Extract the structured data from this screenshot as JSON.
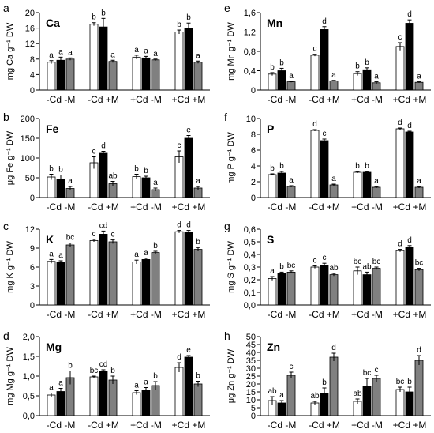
{
  "chart_data": [
    {
      "type": "bar",
      "panel_letter": "a",
      "element": "Ca",
      "ylabel": "mg Ca g⁻¹ DW",
      "ylim": [
        0,
        20
      ],
      "yticks": [
        0,
        4,
        8,
        12,
        16,
        20
      ],
      "ytick_labels": [
        "0",
        "4",
        "8",
        "12",
        "16",
        "20"
      ],
      "categories": [
        "-Cd -M",
        "-Cd +M",
        "+Cd -M",
        "+Cd +M"
      ],
      "series": [
        {
          "values": [
            7.2,
            17.0,
            8.5,
            15.0
          ],
          "errors": [
            0.4,
            0.4,
            0.5,
            0.5
          ],
          "letters": [
            "a",
            "b",
            "a",
            "b"
          ]
        },
        {
          "values": [
            7.7,
            16.3,
            8.3,
            16.0
          ],
          "errors": [
            0.8,
            2.2,
            0.4,
            1.3
          ],
          "letters": [
            "a",
            "b",
            "a",
            "b"
          ]
        },
        {
          "values": [
            8.0,
            7.4,
            7.8,
            7.2
          ],
          "errors": [
            0.3,
            0.3,
            0.2,
            0.3
          ],
          "letters": [
            "a",
            "a",
            "a",
            "a"
          ]
        }
      ]
    },
    {
      "type": "bar",
      "panel_letter": "b",
      "element": "Fe",
      "ylabel": "μg Fe g⁻¹ DW",
      "ylim": [
        0,
        200
      ],
      "yticks": [
        0,
        50,
        100,
        150,
        200
      ],
      "ytick_labels": [
        "0",
        "50",
        "100",
        "150",
        "200"
      ],
      "categories": [
        "-Cd -M",
        "-Cd +M",
        "+Cd -M",
        "+Cd +M"
      ],
      "series": [
        {
          "values": [
            52,
            88,
            53,
            103
          ],
          "errors": [
            7,
            15,
            6,
            15
          ],
          "letters": [
            "b",
            "c",
            "b",
            "c"
          ]
        },
        {
          "values": [
            47,
            112,
            50,
            150
          ],
          "errors": [
            10,
            5,
            4,
            7
          ],
          "letters": [
            "b",
            "d",
            "b",
            "e"
          ]
        },
        {
          "values": [
            23,
            35,
            20,
            24
          ],
          "errors": [
            5,
            6,
            4,
            4
          ],
          "letters": [
            "a",
            "ab",
            "a",
            "a"
          ]
        }
      ]
    },
    {
      "type": "bar",
      "panel_letter": "c",
      "element": "K",
      "ylabel": "mg K g⁻¹ DW",
      "ylim": [
        0,
        12
      ],
      "yticks": [
        0,
        3,
        6,
        9,
        12
      ],
      "ytick_labels": [
        "0",
        "3",
        "6",
        "9",
        "12"
      ],
      "categories": [
        "-Cd -M",
        "-Cd +M",
        "+Cd -M",
        "+Cd +M"
      ],
      "series": [
        {
          "values": [
            6.9,
            10.2,
            6.8,
            11.6
          ],
          "errors": [
            0.3,
            0.2,
            0.3,
            0.2
          ],
          "letters": [
            "a",
            "c",
            "a",
            "d"
          ]
        },
        {
          "values": [
            6.7,
            11.2,
            7.2,
            11.5
          ],
          "errors": [
            0.3,
            0.5,
            0.2,
            0.3
          ],
          "letters": [
            "a",
            "cd",
            "a",
            "d"
          ]
        },
        {
          "values": [
            9.5,
            10.0,
            8.3,
            8.8
          ],
          "errors": [
            0.3,
            0.3,
            0.2,
            0.3
          ],
          "letters": [
            "bc",
            "c",
            "b",
            "b"
          ]
        }
      ]
    },
    {
      "type": "bar",
      "panel_letter": "d",
      "element": "Mg",
      "ylabel": "mg Mg g⁻¹ DW",
      "ylim": [
        0,
        2
      ],
      "yticks": [
        0,
        0.5,
        1,
        1.5,
        2
      ],
      "ytick_labels": [
        "0,0",
        "0,5",
        "1,0",
        "1,5",
        "2,0"
      ],
      "categories": [
        "-Cd -M",
        "-Cd +M",
        "+Cd -M",
        "+Cd +M"
      ],
      "series": [
        {
          "values": [
            0.52,
            0.98,
            0.58,
            1.22
          ],
          "errors": [
            0.05,
            0.02,
            0.05,
            0.12
          ],
          "letters": [
            "a",
            "bc",
            "a",
            "d"
          ]
        },
        {
          "values": [
            0.61,
            1.12,
            0.65,
            1.48
          ],
          "errors": [
            0.08,
            0.04,
            0.06,
            0.04
          ],
          "letters": [
            "a",
            "cd",
            "a",
            "e"
          ]
        },
        {
          "values": [
            0.96,
            0.9,
            0.76,
            0.8
          ],
          "errors": [
            0.17,
            0.1,
            0.1,
            0.07
          ],
          "letters": [
            "b",
            "b",
            "b",
            "b"
          ]
        }
      ]
    },
    {
      "type": "bar",
      "panel_letter": "e",
      "element": "Mn",
      "ylabel": "mg Mn g⁻¹ DW",
      "ylim": [
        0,
        1.6
      ],
      "yticks": [
        0,
        0.4,
        0.8,
        1.2,
        1.6
      ],
      "ytick_labels": [
        "0",
        "0,4",
        "0,8",
        "1,2",
        "1,6"
      ],
      "categories": [
        "-Cd -M",
        "-Cd +M",
        "+Cd -M",
        "+Cd +M"
      ],
      "series": [
        {
          "values": [
            0.33,
            0.72,
            0.34,
            0.9
          ],
          "errors": [
            0.03,
            0.02,
            0.04,
            0.08
          ],
          "letters": [
            "b",
            "c",
            "b",
            "c"
          ]
        },
        {
          "values": [
            0.4,
            1.25,
            0.42,
            1.38
          ],
          "errors": [
            0.05,
            0.06,
            0.04,
            0.07
          ],
          "letters": [
            "b",
            "d",
            "b",
            "d"
          ]
        },
        {
          "values": [
            0.17,
            0.19,
            0.15,
            0.16
          ],
          "errors": [
            0.01,
            0.01,
            0.02,
            0.01
          ],
          "letters": [
            "a",
            "a",
            "a",
            "a"
          ]
        }
      ]
    },
    {
      "type": "bar",
      "panel_letter": "f",
      "element": "P",
      "ylabel": "mg P g⁻¹ DW",
      "ylim": [
        0,
        10
      ],
      "yticks": [
        0,
        2,
        4,
        6,
        8,
        10
      ],
      "ytick_labels": [
        "0",
        "2",
        "4",
        "6",
        "8",
        "10"
      ],
      "categories": [
        "-Cd -M",
        "-Cd +M",
        "+Cd -M",
        "+Cd +M"
      ],
      "series": [
        {
          "values": [
            2.9,
            8.5,
            3.2,
            8.7
          ],
          "errors": [
            0.1,
            0.1,
            0.1,
            0.1
          ],
          "letters": [
            "b",
            "d",
            "b",
            "d"
          ]
        },
        {
          "values": [
            3.1,
            7.2,
            3.2,
            8.3
          ],
          "errors": [
            0.2,
            0.2,
            0.1,
            0.1
          ],
          "letters": [
            "b",
            "c",
            "b",
            "d"
          ]
        },
        {
          "values": [
            1.4,
            1.6,
            1.3,
            1.3
          ],
          "errors": [
            0.1,
            0.1,
            0.1,
            0.1
          ],
          "letters": [
            "a",
            "a",
            "a",
            "a"
          ]
        }
      ]
    },
    {
      "type": "bar",
      "panel_letter": "g",
      "element": "S",
      "ylabel": "mg S g⁻¹ DW",
      "ylim": [
        0,
        0.6
      ],
      "yticks": [
        0,
        0.1,
        0.2,
        0.3,
        0.4,
        0.5,
        0.6
      ],
      "ytick_labels": [
        "0,0",
        "0,1",
        "0,2",
        "0,3",
        "0,4",
        "0,5",
        "0,6"
      ],
      "categories": [
        "-Cd -M",
        "-Cd +M",
        "+Cd -M",
        "+Cd +M"
      ],
      "series": [
        {
          "values": [
            0.21,
            0.3,
            0.27,
            0.43
          ],
          "errors": [
            0.015,
            0.01,
            0.03,
            0.01
          ],
          "letters": [
            "a",
            "c",
            "bc",
            "d"
          ]
        },
        {
          "values": [
            0.25,
            0.31,
            0.24,
            0.46
          ],
          "errors": [
            0.01,
            0.02,
            0.02,
            0.01
          ],
          "letters": [
            "b",
            "c",
            "ab",
            "d"
          ]
        },
        {
          "values": [
            0.26,
            0.24,
            0.29,
            0.28
          ],
          "errors": [
            0.01,
            0.01,
            0.01,
            0.01
          ],
          "letters": [
            "bc",
            "ab",
            "bc",
            "bc"
          ]
        }
      ]
    },
    {
      "type": "bar",
      "panel_letter": "h",
      "element": "Zn",
      "ylabel": "μg Zn g⁻¹ DW",
      "ylim": [
        0,
        50
      ],
      "yticks": [
        0,
        5,
        10,
        15,
        20,
        25,
        30,
        35,
        40,
        45,
        50
      ],
      "ytick_labels": [
        "0",
        "5",
        "10",
        "15",
        "20",
        "25",
        "30",
        "35",
        "40",
        "45",
        "50"
      ],
      "categories": [
        "-Cd -M",
        "-Cd +M",
        "+Cd -M",
        "+Cd +M"
      ],
      "series": [
        {
          "values": [
            9.5,
            8.0,
            9.0,
            16.5
          ],
          "errors": [
            2.5,
            1.0,
            1.5,
            1.5
          ],
          "letters": [
            "ab",
            "ab",
            "ab",
            "bc"
          ]
        },
        {
          "values": [
            8.0,
            14.0,
            18.5,
            15.0
          ],
          "errors": [
            1.5,
            3.5,
            5.0,
            3.0
          ],
          "letters": [
            "a",
            "b",
            "bc",
            "b"
          ]
        },
        {
          "values": [
            25.5,
            37.0,
            23.5,
            35.0
          ],
          "errors": [
            2.0,
            2.5,
            2.0,
            3.0
          ],
          "letters": [
            "c",
            "d",
            "c",
            "d"
          ]
        }
      ]
    }
  ],
  "colors": {
    "series": [
      "#ffffff",
      "#000000",
      "#808080"
    ],
    "axis": "#000000"
  }
}
